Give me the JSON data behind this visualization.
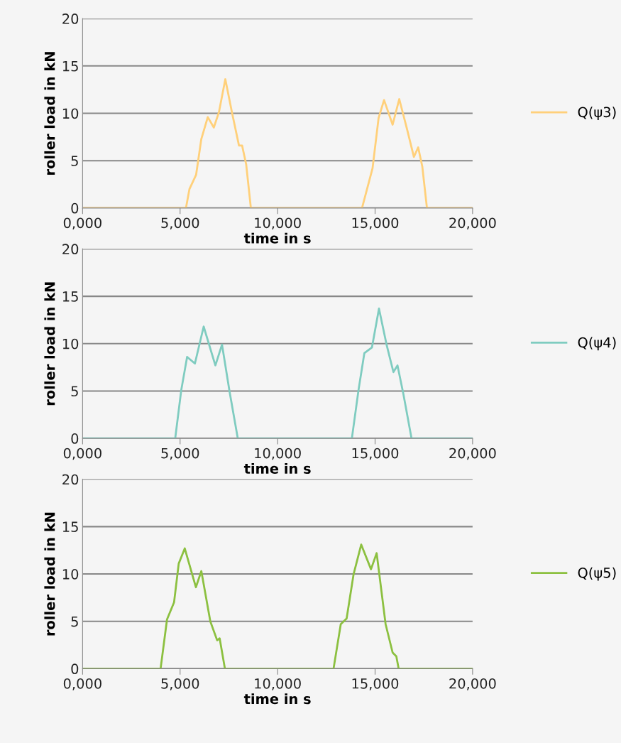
{
  "chart_data": [
    {
      "type": "line",
      "xlabel": "time in s",
      "ylabel": "roller load in kN",
      "xlim": [
        0,
        20
      ],
      "ylim": [
        0,
        20
      ],
      "xticks": [
        {
          "value": 0,
          "label": "0,000"
        },
        {
          "value": 5,
          "label": "5,000"
        },
        {
          "value": 10,
          "label": "10,000"
        },
        {
          "value": 15,
          "label": "15,000"
        },
        {
          "value": 20,
          "label": "20,000"
        }
      ],
      "yticks": [
        0,
        5,
        10,
        15,
        20
      ],
      "grid": "y",
      "legend": "right",
      "series": [
        {
          "name": "Q(ψ3)",
          "color": "#ffd07a",
          "x": [
            0,
            5.3,
            5.48,
            5.82,
            6.09,
            6.42,
            6.73,
            6.99,
            7.32,
            7.66,
            8.02,
            8.18,
            8.39,
            8.63,
            14.33,
            14.87,
            15.18,
            15.46,
            15.9,
            16.24,
            16.63,
            16.99,
            17.21,
            17.42,
            17.66,
            20
          ],
          "values": [
            0,
            0,
            2.0,
            3.5,
            7.3,
            9.6,
            8.5,
            10.1,
            13.6,
            10.1,
            6.6,
            6.6,
            4.6,
            0,
            0,
            4.2,
            9.5,
            11.4,
            8.8,
            11.5,
            8.4,
            5.4,
            6.4,
            4.4,
            0,
            0
          ]
        }
      ]
    },
    {
      "type": "line",
      "xlabel": "time in s",
      "ylabel": "roller load in kN",
      "xlim": [
        0,
        20
      ],
      "ylim": [
        0,
        20
      ],
      "xticks": [
        {
          "value": 0,
          "label": "0,000"
        },
        {
          "value": 5,
          "label": "5,000"
        },
        {
          "value": 10,
          "label": "10,000"
        },
        {
          "value": 15,
          "label": "15,000"
        },
        {
          "value": 20,
          "label": "20,000"
        }
      ],
      "yticks": [
        0,
        5,
        10,
        15,
        20
      ],
      "grid": "y",
      "legend": "right",
      "series": [
        {
          "name": "Q(ψ4)",
          "color": "#7fccc0",
          "x": [
            0,
            4.75,
            5.06,
            5.36,
            5.76,
            6.21,
            6.81,
            7.15,
            7.54,
            7.96,
            13.81,
            14.15,
            14.45,
            14.84,
            15.2,
            15.6,
            15.94,
            16.15,
            16.45,
            16.87,
            20
          ],
          "values": [
            0,
            0,
            5.1,
            8.6,
            7.9,
            11.8,
            7.7,
            9.9,
            4.9,
            0,
            0,
            5.1,
            9.0,
            9.6,
            13.7,
            9.8,
            7.0,
            7.7,
            4.7,
            0,
            0
          ]
        }
      ]
    },
    {
      "type": "line",
      "xlabel": "time in s",
      "ylabel": "roller load in kN",
      "xlim": [
        0,
        20
      ],
      "ylim": [
        0,
        20
      ],
      "xticks": [
        {
          "value": 0,
          "label": "0,000"
        },
        {
          "value": 5,
          "label": "5,000"
        },
        {
          "value": 10,
          "label": "10,000"
        },
        {
          "value": 15,
          "label": "15,000"
        },
        {
          "value": 20,
          "label": "20,000"
        }
      ],
      "yticks": [
        0,
        5,
        10,
        15,
        20
      ],
      "grid": "y",
      "legend": "right",
      "series": [
        {
          "name": "Q(ψ5)",
          "color": "#8cc040",
          "x": [
            0,
            4.0,
            4.33,
            4.69,
            4.93,
            5.24,
            5.81,
            6.09,
            6.55,
            6.9,
            7.03,
            7.3,
            12.87,
            13.24,
            13.54,
            13.9,
            14.29,
            14.79,
            15.08,
            15.54,
            15.9,
            16.09,
            16.21,
            20
          ],
          "values": [
            0,
            0,
            5.2,
            7.0,
            11.1,
            12.7,
            8.6,
            10.3,
            5.0,
            3.0,
            3.2,
            0,
            0,
            4.7,
            5.3,
            10.0,
            13.1,
            10.5,
            12.2,
            4.7,
            1.7,
            1.3,
            0,
            0
          ]
        }
      ]
    }
  ]
}
